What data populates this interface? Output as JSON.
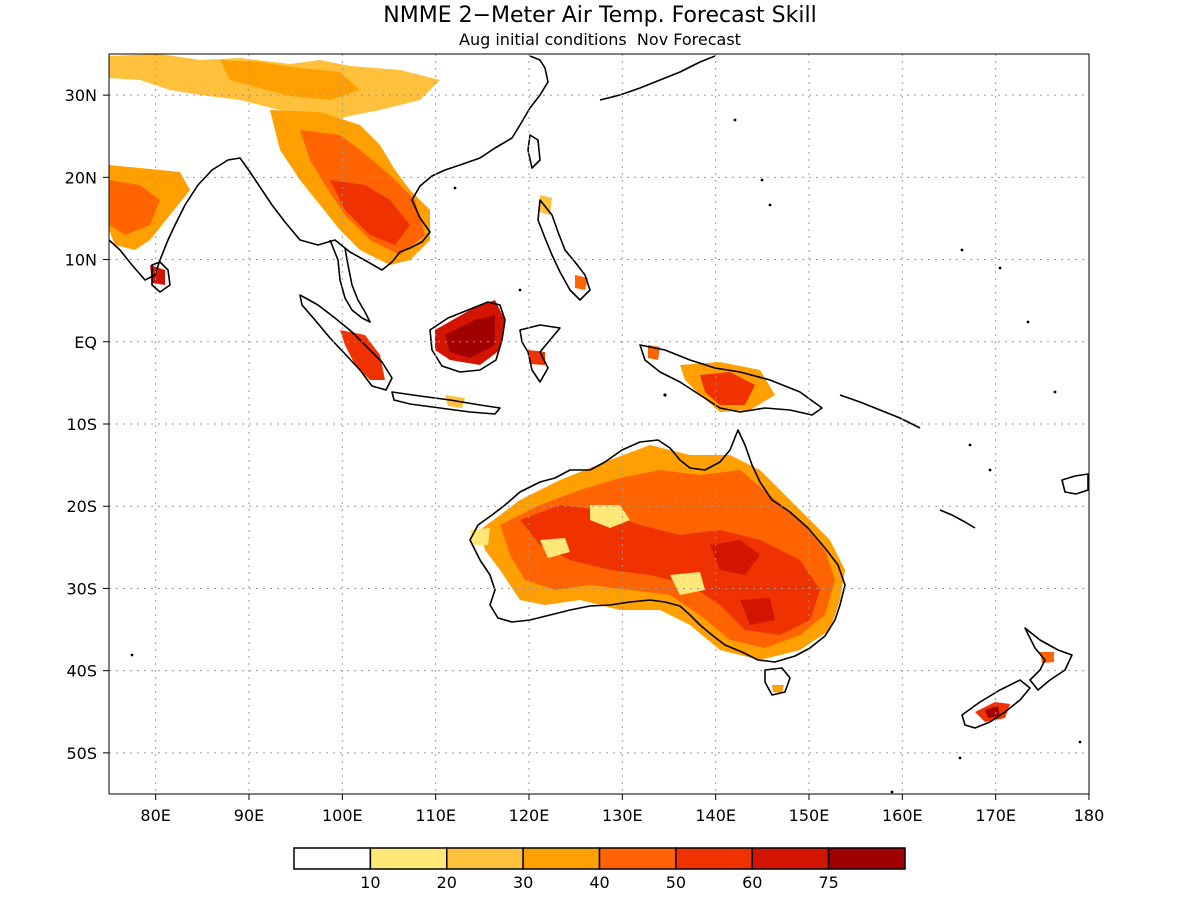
{
  "header": {
    "title": "NMME 2−Meter Air Temp. Forecast Skill",
    "subtitle": "Aug initial conditions  Nov Forecast"
  },
  "map": {
    "lon_range": [
      75,
      180
    ],
    "lat_range": [
      -55,
      35
    ],
    "x_ticks": [
      {
        "value": 80,
        "label": "80E"
      },
      {
        "value": 90,
        "label": "90E"
      },
      {
        "value": 100,
        "label": "100E"
      },
      {
        "value": 110,
        "label": "110E"
      },
      {
        "value": 120,
        "label": "120E"
      },
      {
        "value": 130,
        "label": "130E"
      },
      {
        "value": 140,
        "label": "140E"
      },
      {
        "value": 150,
        "label": "150E"
      },
      {
        "value": 160,
        "label": "160E"
      },
      {
        "value": 170,
        "label": "170E"
      },
      {
        "value": 180,
        "label": "180"
      }
    ],
    "y_ticks": [
      {
        "value": 30,
        "label": "30N"
      },
      {
        "value": 20,
        "label": "20N"
      },
      {
        "value": 10,
        "label": "10N"
      },
      {
        "value": 0,
        "label": "EQ"
      },
      {
        "value": -10,
        "label": "10S"
      },
      {
        "value": -20,
        "label": "20S"
      },
      {
        "value": -30,
        "label": "30S"
      },
      {
        "value": -40,
        "label": "40S"
      },
      {
        "value": -50,
        "label": "50S"
      }
    ],
    "grid": "dotted",
    "coastline_color": "#000000"
  },
  "legend": {
    "bins": [
      {
        "color": "#ffffff"
      },
      {
        "color": "#ffe878"
      },
      {
        "color": "#ffc03c"
      },
      {
        "color": "#ffa000"
      },
      {
        "color": "#ff6400"
      },
      {
        "color": "#f03200"
      },
      {
        "color": "#d21400"
      },
      {
        "color": "#a00000"
      }
    ],
    "labels": [
      "10",
      "20",
      "30",
      "40",
      "50",
      "60",
      "75"
    ]
  }
}
